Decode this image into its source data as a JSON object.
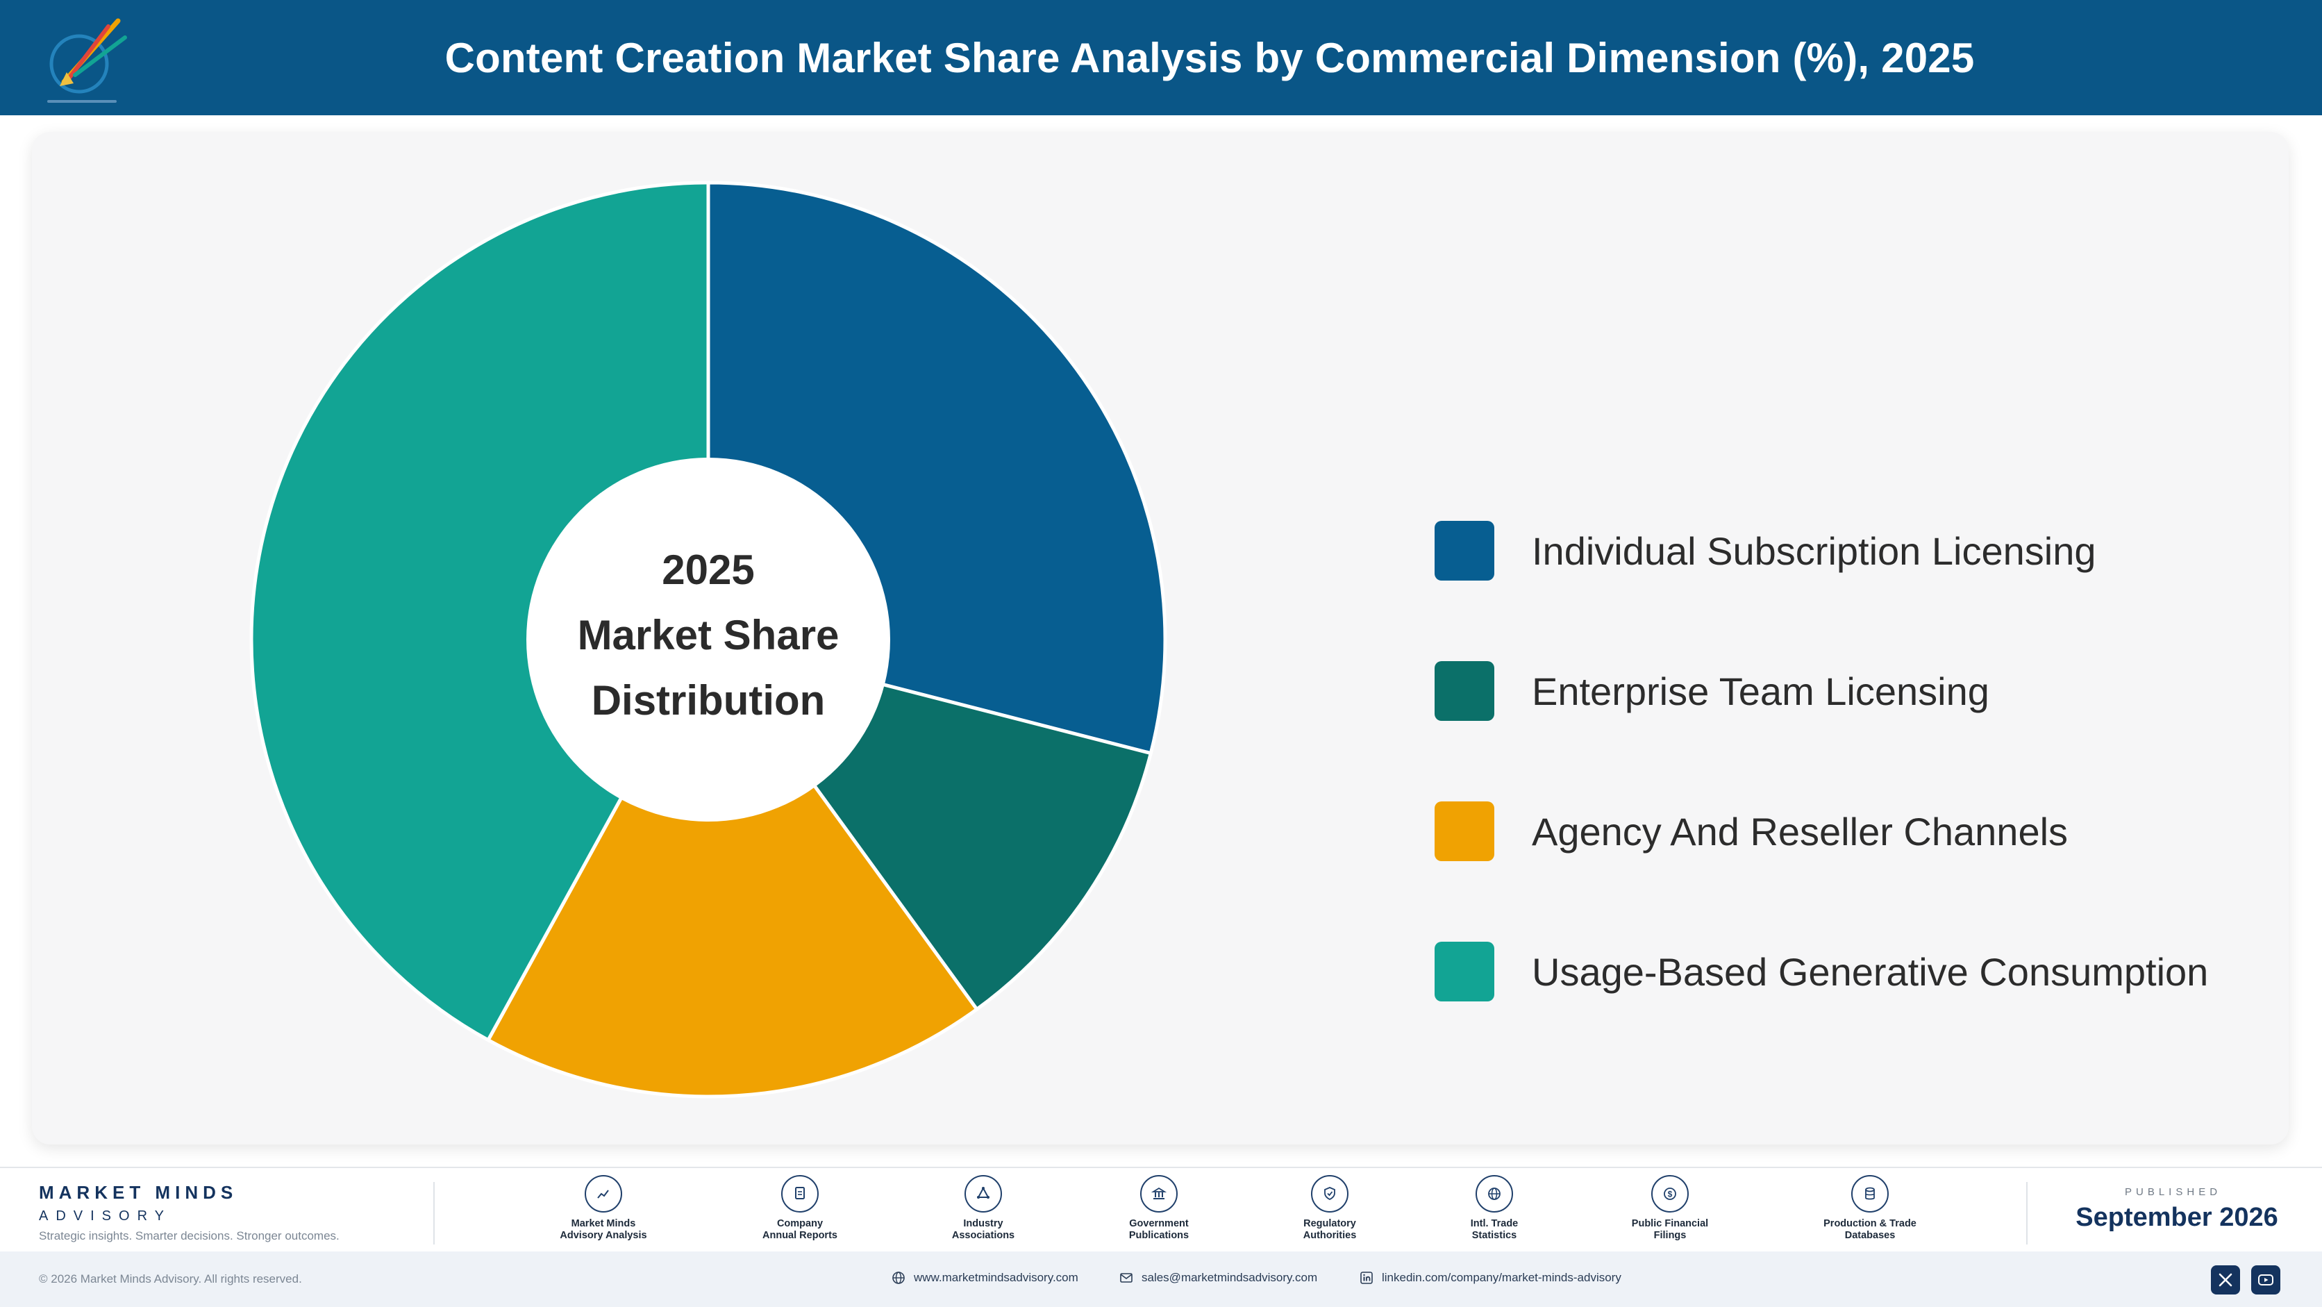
{
  "header": {
    "title": "Content Creation Market Share Analysis by Commercial Dimension (%), 2025"
  },
  "chart_data": {
    "type": "pie",
    "donut": true,
    "center_label": [
      "2025",
      "Market Share",
      "Distribution"
    ],
    "categories": [
      "Individual Subscription Licensing",
      "Enterprise Team Licensing",
      "Agency And Reseller Channels",
      "Usage-Based Generative Consumption"
    ],
    "values": [
      29,
      11,
      18,
      42
    ],
    "colors": [
      "#075e91",
      "#0b7069",
      "#f0a202",
      "#12a494"
    ],
    "legend_position": "right"
  },
  "footer": {
    "brand_name": "MARKET MINDS",
    "brand_sub": "ADVISORY",
    "tagline": "Strategic insights. Smarter decisions. Stronger outcomes.",
    "sources": [
      {
        "label": "Market Minds\nAdvisory Analysis",
        "icon": "trend-chart-icon"
      },
      {
        "label": "Company\nAnnual Reports",
        "icon": "document-icon"
      },
      {
        "label": "Industry\nAssociations",
        "icon": "network-icon"
      },
      {
        "label": "Government\nPublications",
        "icon": "government-building-icon"
      },
      {
        "label": "Regulatory\nAuthorities",
        "icon": "shield-check-icon"
      },
      {
        "label": "Intl. Trade\nStatistics",
        "icon": "globe-icon"
      },
      {
        "label": "Public Financial\nFilings",
        "icon": "dollar-coin-icon"
      },
      {
        "label": "Production & Trade\nDatabases",
        "icon": "database-icon"
      }
    ],
    "published_label": "PUBLISHED",
    "published_date": "September 2026"
  },
  "bottom_bar": {
    "copyright": "© 2026 Market Minds Advisory. All rights reserved.",
    "website": "www.marketmindsadvisory.com",
    "email": "sales@marketmindsadvisory.com",
    "linkedin": "linkedin.com/company/market-minds-advisory"
  }
}
